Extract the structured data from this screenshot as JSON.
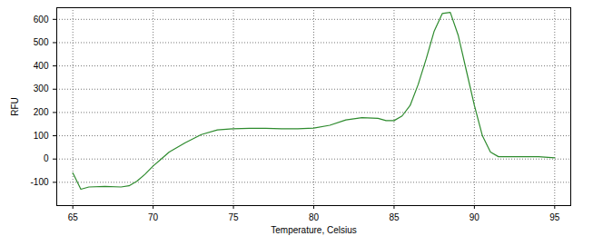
{
  "chart_data": {
    "type": "line",
    "x_label": "Temperature, Celsius",
    "y_label": "RFU",
    "x": [
      65,
      65.5,
      66,
      67,
      68,
      68.5,
      69,
      69.5,
      70,
      70.5,
      71,
      72,
      73,
      74,
      75,
      76,
      77,
      78,
      79,
      80,
      81,
      82,
      83,
      84,
      84.5,
      85,
      85.5,
      86,
      86.5,
      87,
      87.5,
      88,
      88.5,
      89,
      89.5,
      90,
      90.5,
      91,
      91.5,
      92,
      93,
      94,
      95
    ],
    "series": [
      {
        "color": "#2e8b2e",
        "values": [
          -60,
          -130,
          -120,
          -118,
          -120,
          -115,
          -95,
          -65,
          -30,
          0,
          30,
          70,
          105,
          125,
          130,
          132,
          132,
          130,
          130,
          133,
          145,
          168,
          178,
          175,
          165,
          165,
          185,
          230,
          320,
          430,
          550,
          625,
          630,
          530,
          380,
          230,
          100,
          30,
          10,
          10,
          10,
          10,
          5
        ]
      }
    ],
    "xlim": [
      64,
      96
    ],
    "ylim": [
      -200,
      650
    ],
    "xticks": [
      65,
      70,
      75,
      80,
      85,
      90,
      95
    ],
    "yticks": [
      -100,
      0,
      100,
      200,
      300,
      400,
      500,
      600
    ],
    "grid": true
  }
}
